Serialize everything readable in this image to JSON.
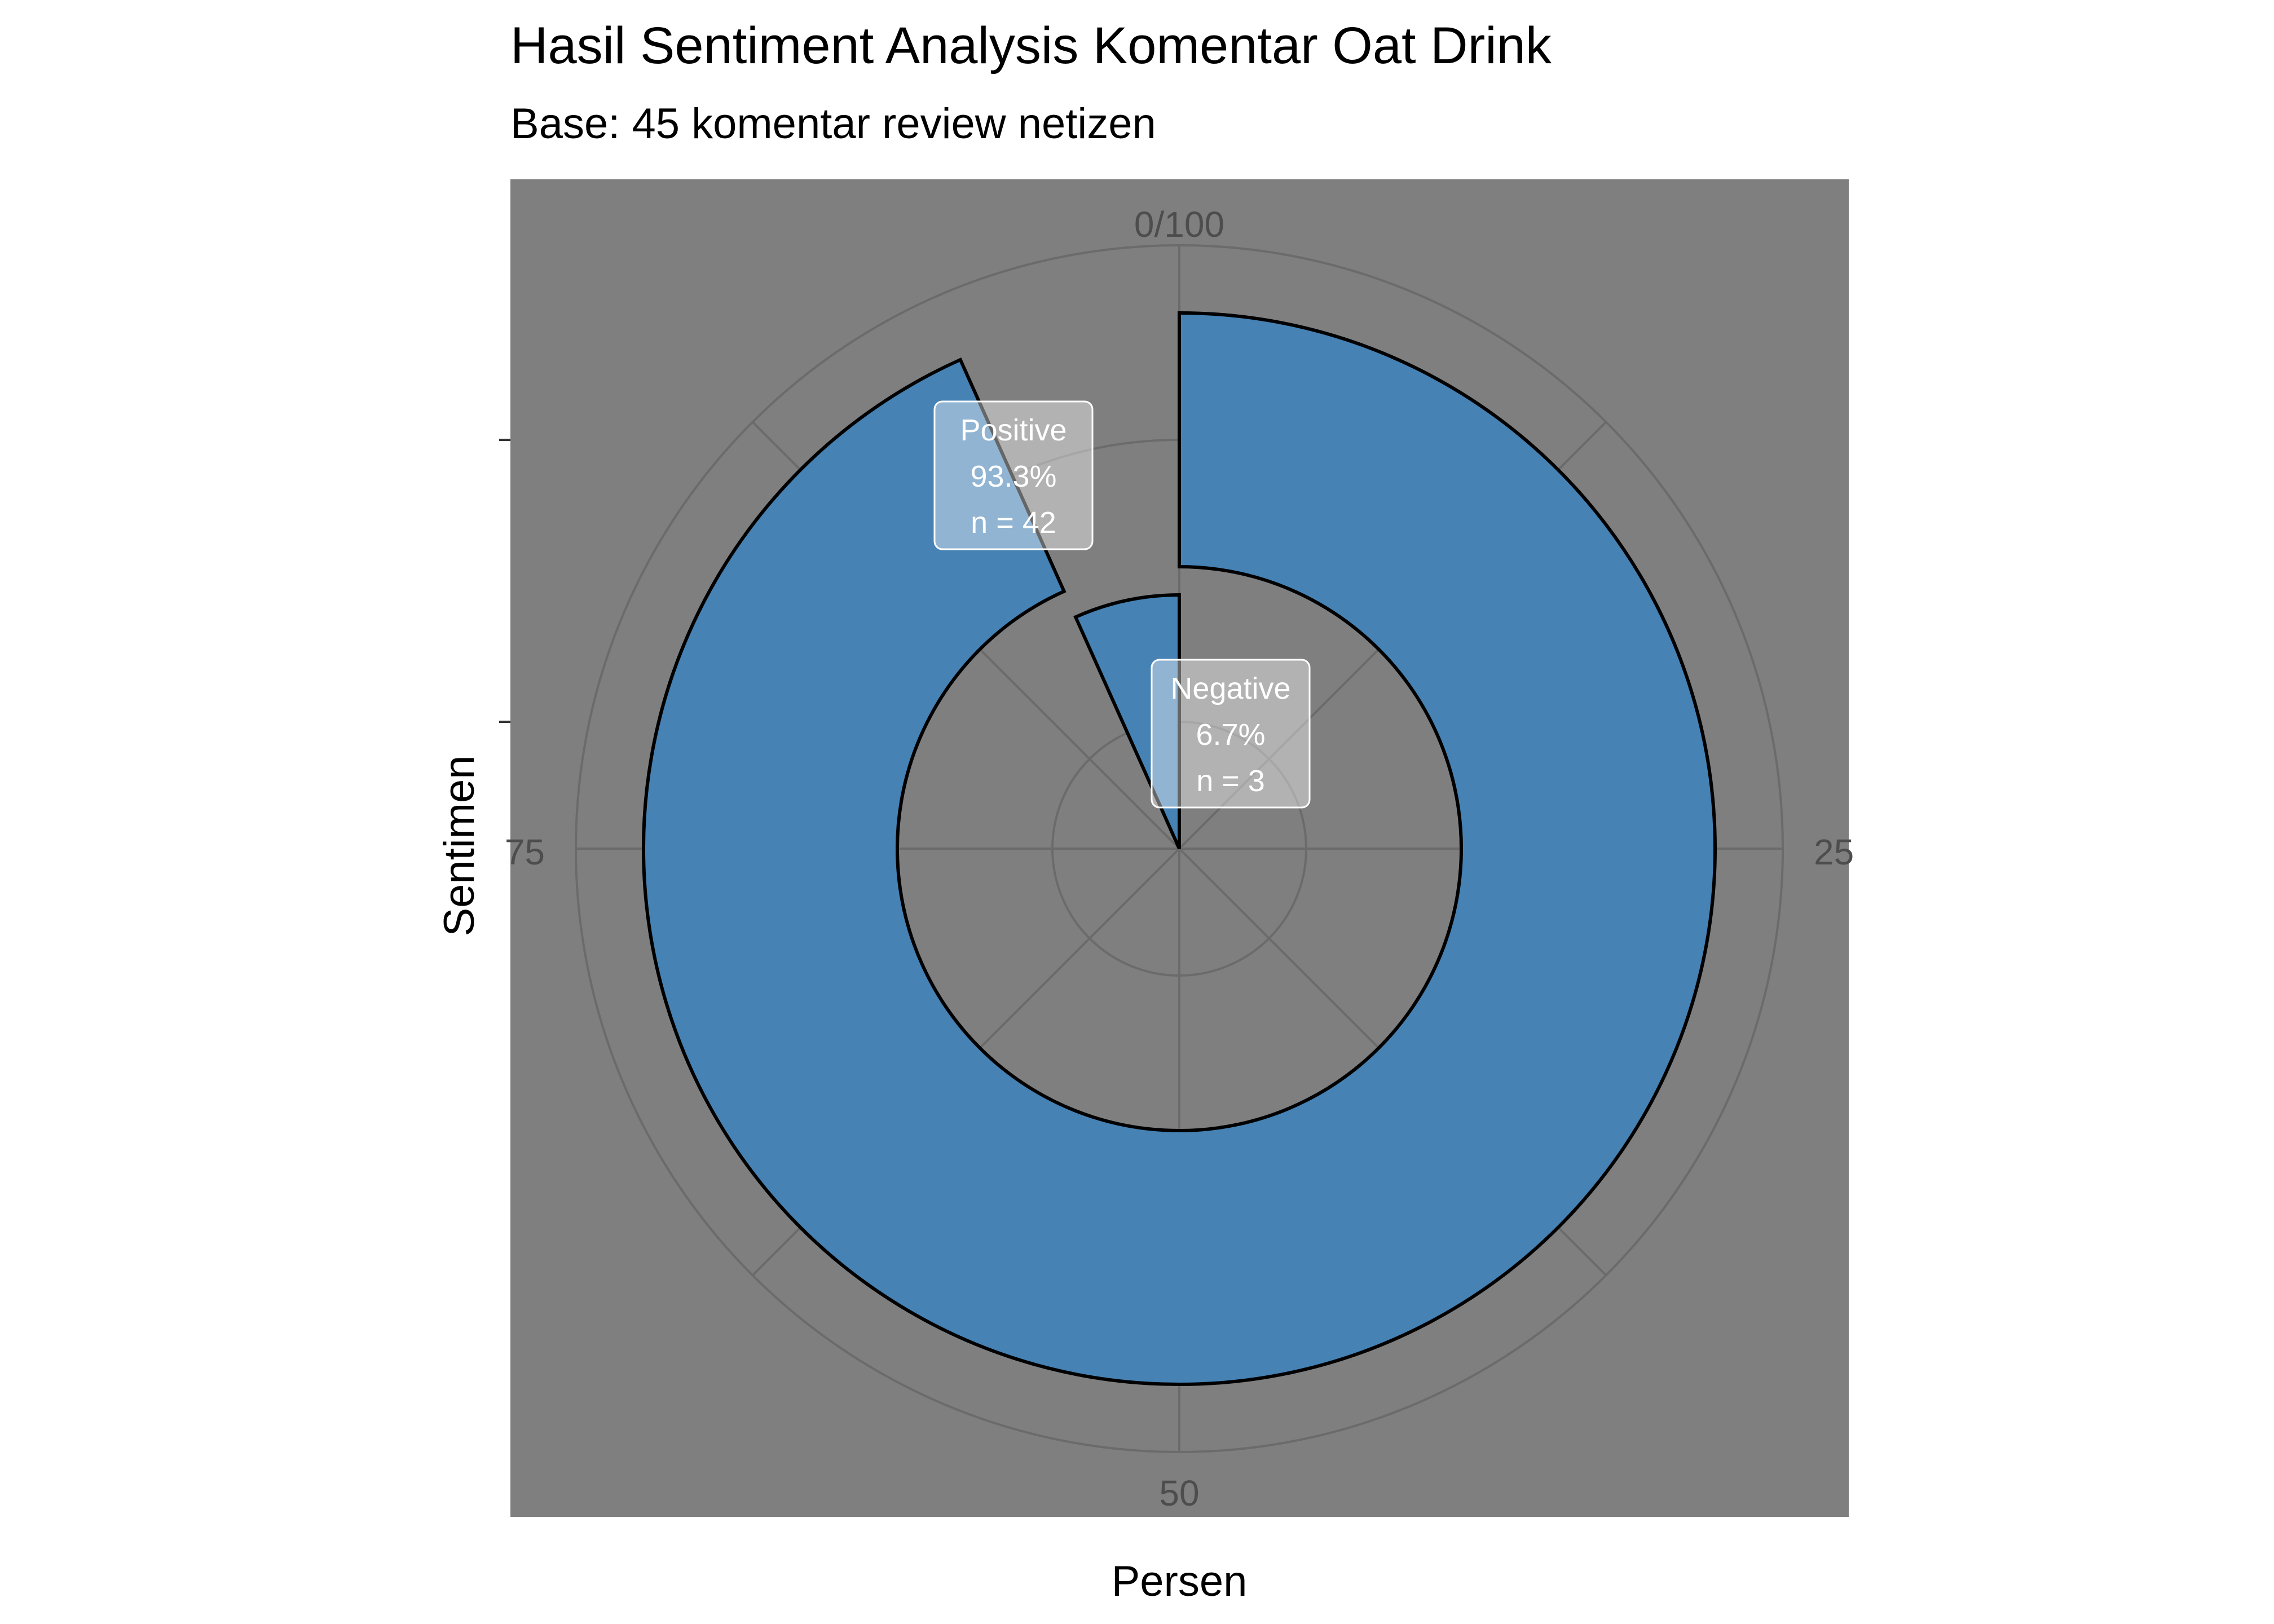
{
  "chart_data": {
    "type": "pie",
    "title": "Hasil Sentiment Analysis Komentar Oat Drink",
    "subtitle": "Base: 45 komentar review netizen",
    "xlabel": "Persen",
    "ylabel": "Sentimen",
    "angle_range": [
      0,
      100
    ],
    "angle_ticks": [
      "0/100",
      "25",
      "50",
      "75"
    ],
    "grid": true,
    "series": [
      {
        "label": "Positive",
        "value": 93.3,
        "n": 42,
        "pct_label": "93.3%",
        "n_label": "n = 42",
        "color": "#4682b4"
      },
      {
        "label": "Negative",
        "value": 6.7,
        "n": 3,
        "pct_label": "6.7%",
        "n_label": "n = 3",
        "color": "#4682b4"
      }
    ],
    "colors": {
      "panel": "#7f7f7f",
      "grid": "#6b6b6b",
      "tick_text": "#4d4d4d",
      "outline": "#000000"
    }
  }
}
